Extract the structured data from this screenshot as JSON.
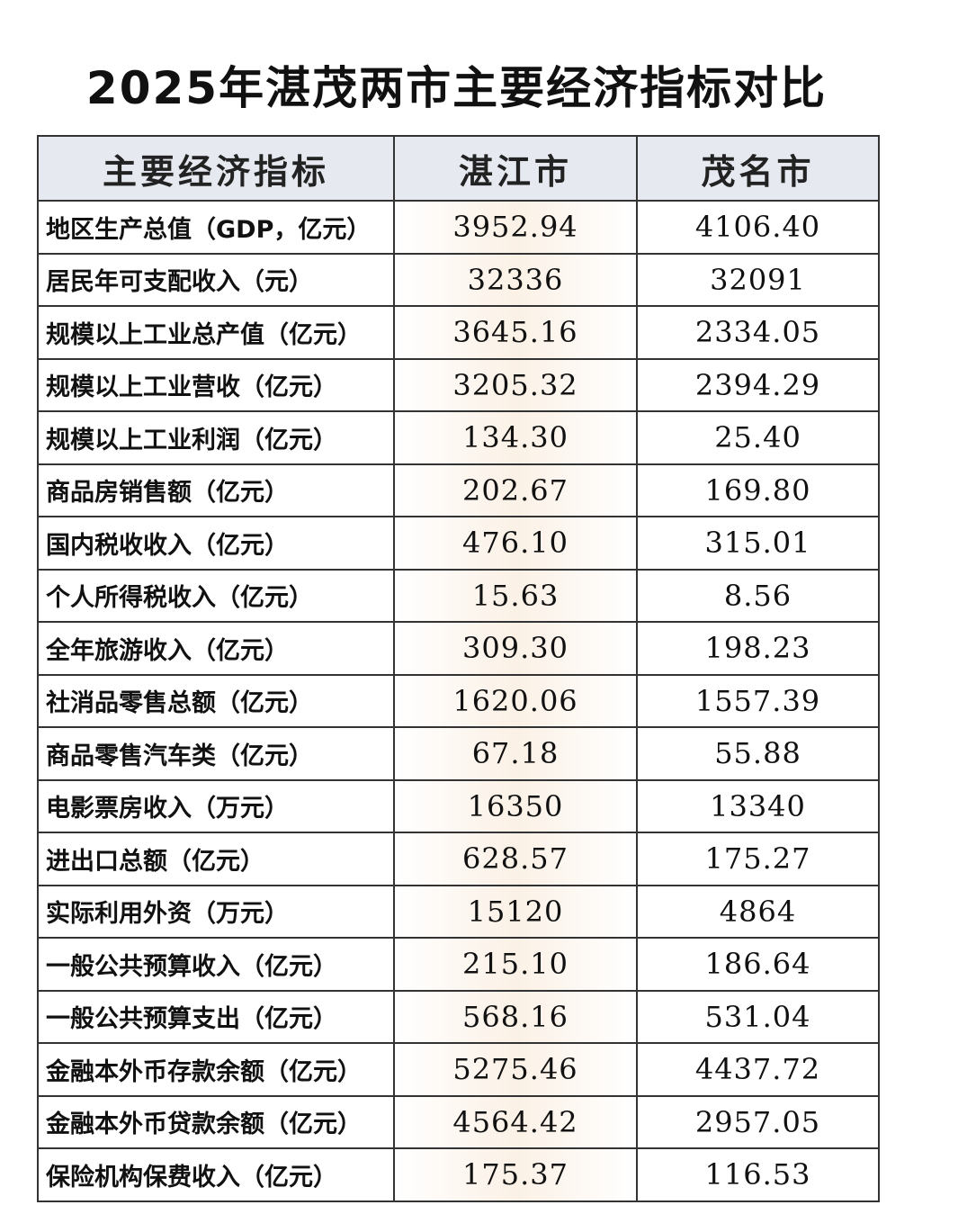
{
  "title": "2025年湛茂两市主要经济指标对比",
  "table": {
    "header": [
      "主要经济指标",
      "湛江市",
      "茂名市"
    ],
    "rows": [
      [
        "地区生产总值（GDP，亿元）",
        "3952.94",
        "4106.40"
      ],
      [
        "居民年可支配收入（元）",
        "32336",
        "32091"
      ],
      [
        "规模以上工业总产值（亿元）",
        "3645.16",
        "2334.05"
      ],
      [
        "规模以上工业营收（亿元）",
        "3205.32",
        "2394.29"
      ],
      [
        "规模以上工业利润（亿元）",
        "134.30",
        "25.40"
      ],
      [
        "商品房销售额（亿元）",
        "202.67",
        "169.80"
      ],
      [
        "国内税收收入（亿元）",
        "476.10",
        "315.01"
      ],
      [
        "个人所得税收入（亿元）",
        "15.63",
        "8.56"
      ],
      [
        "全年旅游收入（亿元）",
        "309.30",
        "198.23"
      ],
      [
        "社消品零售总额（亿元）",
        "1620.06",
        "1557.39"
      ],
      [
        "商品零售汽车类（亿元）",
        "67.18",
        "55.88"
      ],
      [
        "电影票房收入（万元）",
        "16350",
        "13340"
      ],
      [
        "进出口总额（亿元）",
        "628.57",
        "175.27"
      ],
      [
        "实际利用外资（万元）",
        "15120",
        "4864"
      ],
      [
        "一般公共预算收入（亿元）",
        "215.10",
        "186.64"
      ],
      [
        "一般公共预算支出（亿元）",
        "568.16",
        "531.04"
      ],
      [
        "金融本外币存款余额（亿元）",
        "5275.46",
        "4437.72"
      ],
      [
        "金融本外币贷款余额（亿元）",
        "4564.42",
        "2957.05"
      ],
      [
        "保险机构保费收入（亿元）",
        "175.37",
        "116.53"
      ]
    ]
  }
}
